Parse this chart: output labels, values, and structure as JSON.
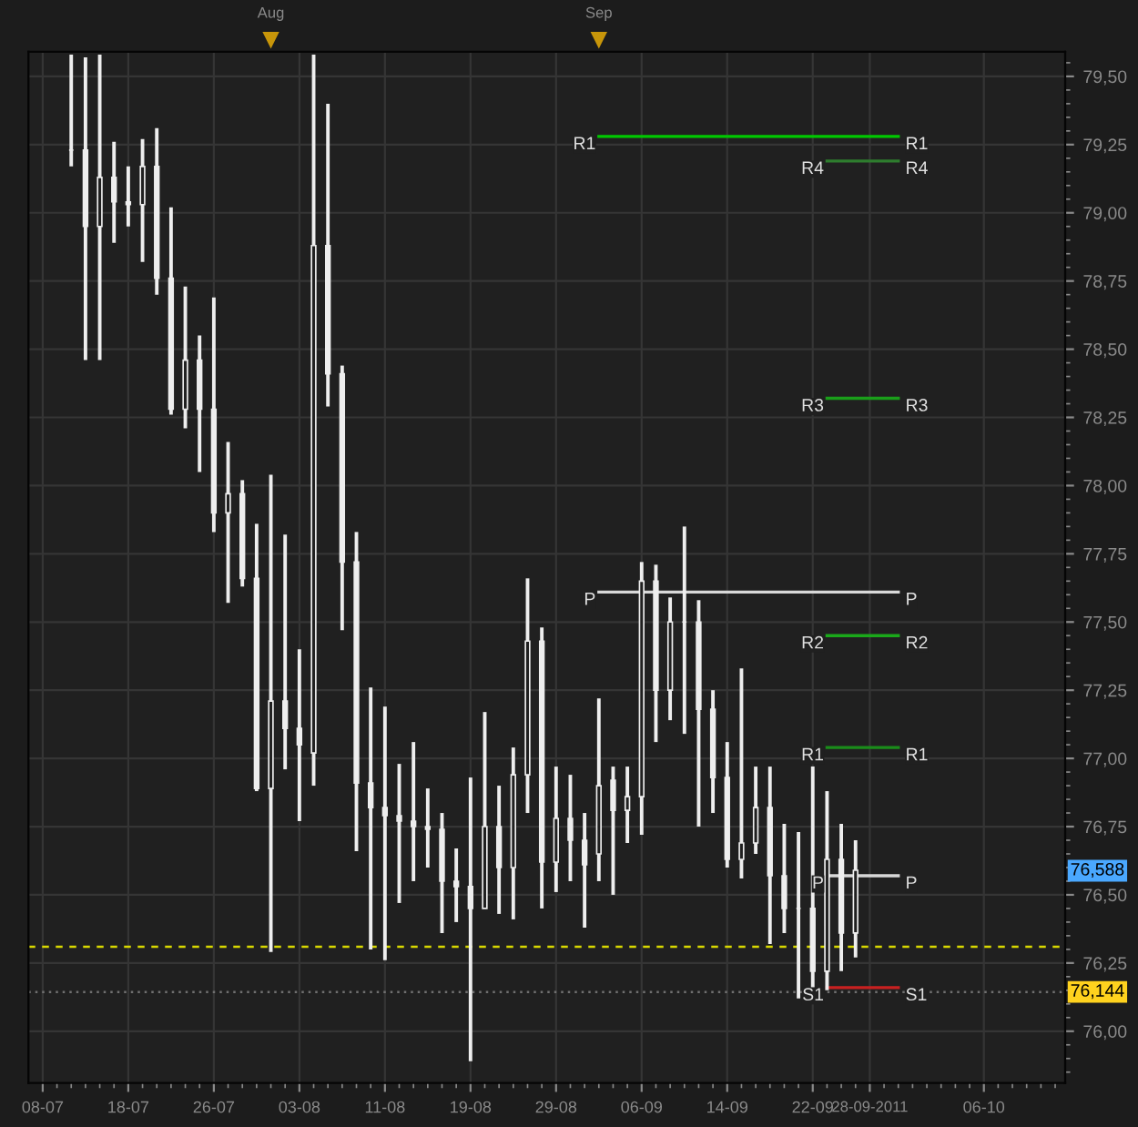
{
  "chart_data": {
    "type": "candlestick",
    "color": "#eeeeee",
    "categories": [
      "08-07",
      null,
      null,
      null,
      null,
      null,
      "18-07",
      null,
      null,
      null,
      null,
      null,
      "26-07",
      null,
      null,
      null,
      null,
      null,
      "03-08",
      null,
      null,
      null,
      null,
      null,
      "11-08",
      null,
      null,
      null,
      null,
      null,
      "19-08",
      null,
      null,
      null,
      null,
      null,
      "29-08",
      null,
      null,
      null,
      null,
      null,
      "06-09",
      null,
      null,
      null,
      null,
      null,
      "14-09",
      null,
      null,
      null,
      null,
      null,
      "22-09",
      null,
      null,
      null,
      "28-09-2011",
      null,
      null,
      null,
      null,
      null,
      null,
      null,
      "06-10",
      null,
      null,
      null,
      null,
      null
    ],
    "ohlc": [
      null,
      null,
      [
        79.23,
        79.58,
        79.17,
        79.23
      ],
      [
        79.23,
        79.57,
        78.46,
        78.95
      ],
      [
        78.95,
        79.58,
        78.46,
        79.13
      ],
      [
        79.13,
        79.26,
        78.89,
        79.04
      ],
      [
        79.04,
        79.17,
        78.95,
        79.03
      ],
      [
        79.03,
        79.27,
        78.82,
        79.17
      ],
      [
        79.17,
        79.31,
        78.7,
        78.76
      ],
      [
        78.76,
        79.02,
        78.26,
        78.28
      ],
      [
        78.28,
        78.73,
        78.21,
        78.46
      ],
      [
        78.46,
        78.55,
        78.05,
        78.28
      ],
      [
        78.28,
        78.69,
        77.83,
        77.9
      ],
      [
        77.9,
        78.16,
        77.57,
        77.97
      ],
      [
        77.97,
        78.02,
        77.63,
        77.66
      ],
      [
        77.66,
        77.86,
        76.88,
        76.89
      ],
      [
        76.89,
        78.04,
        76.29,
        77.21
      ],
      [
        77.21,
        77.82,
        76.96,
        77.11
      ],
      [
        77.11,
        77.4,
        76.77,
        77.05
      ],
      [
        77.02,
        79.58,
        76.9,
        78.88
      ],
      [
        78.88,
        79.4,
        78.29,
        78.41
      ],
      [
        78.41,
        78.44,
        77.47,
        77.72
      ],
      [
        77.72,
        77.83,
        76.66,
        76.91
      ],
      [
        76.91,
        77.26,
        76.3,
        76.82
      ],
      [
        76.82,
        77.19,
        76.26,
        76.79
      ],
      [
        76.79,
        76.98,
        76.47,
        76.77
      ],
      [
        76.77,
        77.06,
        76.55,
        76.75
      ],
      [
        76.75,
        76.89,
        76.6,
        76.74
      ],
      [
        76.74,
        76.8,
        76.36,
        76.55
      ],
      [
        76.55,
        76.67,
        76.4,
        76.53
      ],
      [
        76.53,
        76.93,
        75.89,
        76.45
      ],
      [
        76.45,
        77.17,
        76.45,
        76.75
      ],
      [
        76.75,
        76.9,
        76.43,
        76.6
      ],
      [
        76.6,
        77.04,
        76.41,
        76.94
      ],
      [
        76.94,
        77.66,
        76.8,
        77.43
      ],
      [
        77.43,
        77.48,
        76.45,
        76.62
      ],
      [
        76.62,
        76.97,
        76.51,
        76.78
      ],
      [
        76.78,
        76.94,
        76.55,
        76.7
      ],
      [
        76.7,
        76.8,
        76.38,
        76.61
      ],
      [
        76.65,
        77.22,
        76.55,
        76.9
      ],
      [
        76.92,
        76.97,
        76.5,
        76.81
      ],
      [
        76.81,
        76.97,
        76.69,
        76.86
      ],
      [
        76.86,
        77.72,
        76.72,
        77.65
      ],
      [
        77.65,
        77.71,
        77.06,
        77.25
      ],
      [
        77.25,
        77.59,
        77.14,
        77.5
      ],
      [
        77.5,
        77.85,
        77.09,
        77.5
      ],
      [
        77.5,
        77.58,
        76.75,
        77.18
      ],
      [
        77.18,
        77.25,
        76.8,
        76.93
      ],
      [
        76.93,
        77.06,
        76.6,
        76.63
      ],
      [
        76.63,
        77.33,
        76.56,
        76.69
      ],
      [
        76.69,
        76.97,
        76.65,
        76.82
      ],
      [
        76.82,
        76.97,
        76.32,
        76.57
      ],
      [
        76.57,
        76.76,
        76.36,
        76.45
      ],
      [
        76.45,
        76.73,
        76.12,
        76.45
      ],
      [
        76.45,
        76.97,
        76.1,
        76.22
      ],
      [
        76.22,
        76.88,
        76.15,
        76.63
      ],
      [
        76.63,
        76.76,
        76.22,
        76.36
      ],
      [
        76.36,
        76.7,
        76.27,
        76.59
      ],
      null,
      null,
      null,
      null,
      null,
      null,
      null,
      null,
      null,
      null,
      null,
      null,
      null,
      null
    ],
    "series": [
      {
        "type": "line",
        "name": "R1",
        "color": "#00c800",
        "values": [
          null,
          null,
          null,
          null,
          null,
          null,
          null,
          null,
          null,
          null,
          null,
          null,
          null,
          null,
          null,
          null,
          null,
          null,
          null,
          null,
          null,
          null,
          null,
          null,
          null,
          null,
          null,
          null,
          null,
          null,
          null,
          null,
          null,
          null,
          null,
          null,
          null,
          null,
          null,
          79.28,
          79.28,
          79.28,
          79.28,
          79.28,
          79.28,
          79.28,
          79.28,
          79.28,
          79.28,
          79.28,
          79.28,
          79.28,
          79.28,
          79.28,
          79.28,
          79.28,
          79.28,
          79.28,
          79.28,
          79.28,
          79.28,
          null,
          null,
          null,
          null,
          null,
          null,
          null,
          null,
          null,
          null,
          null
        ]
      },
      {
        "type": "line",
        "name": "R4",
        "color": "#2e7d2e",
        "values": [
          null,
          null,
          null,
          null,
          null,
          null,
          null,
          null,
          null,
          null,
          null,
          null,
          null,
          null,
          null,
          null,
          null,
          null,
          null,
          null,
          null,
          null,
          null,
          null,
          null,
          null,
          null,
          null,
          null,
          null,
          null,
          null,
          null,
          null,
          null,
          null,
          null,
          null,
          null,
          null,
          null,
          null,
          null,
          null,
          null,
          null,
          null,
          null,
          null,
          null,
          null,
          null,
          null,
          null,
          null,
          79.19,
          79.19,
          79.19,
          79.19,
          79.19,
          79.19,
          null,
          null,
          null,
          null,
          null,
          null,
          null,
          null,
          null,
          null,
          null
        ]
      },
      {
        "type": "line",
        "name": "R3",
        "color": "#1a9e1a",
        "values": [
          null,
          null,
          null,
          null,
          null,
          null,
          null,
          null,
          null,
          null,
          null,
          null,
          null,
          null,
          null,
          null,
          null,
          null,
          null,
          null,
          null,
          null,
          null,
          null,
          null,
          null,
          null,
          null,
          null,
          null,
          null,
          null,
          null,
          null,
          null,
          null,
          null,
          null,
          null,
          null,
          null,
          null,
          null,
          null,
          null,
          null,
          null,
          null,
          null,
          null,
          null,
          null,
          null,
          null,
          null,
          78.32,
          78.32,
          78.32,
          78.32,
          78.32,
          78.32,
          null,
          null,
          null,
          null,
          null,
          null,
          null,
          null,
          null,
          null,
          null
        ]
      },
      {
        "type": "line",
        "name": "P",
        "color": "#d8d8d8",
        "values": [
          null,
          null,
          null,
          null,
          null,
          null,
          null,
          null,
          null,
          null,
          null,
          null,
          null,
          null,
          null,
          null,
          null,
          null,
          null,
          null,
          null,
          null,
          null,
          null,
          null,
          null,
          null,
          null,
          null,
          null,
          null,
          null,
          null,
          null,
          null,
          null,
          null,
          null,
          null,
          77.61,
          77.61,
          77.61,
          77.61,
          77.61,
          77.61,
          77.61,
          77.61,
          77.61,
          77.61,
          77.61,
          77.61,
          77.61,
          77.61,
          77.61,
          77.61,
          77.61,
          77.61,
          77.61,
          77.61,
          77.61,
          77.61,
          null,
          null,
          null,
          null,
          null,
          null,
          null,
          null,
          null,
          null,
          null
        ]
      },
      {
        "type": "line",
        "name": "R2",
        "color": "#1aa81a",
        "values": [
          null,
          null,
          null,
          null,
          null,
          null,
          null,
          null,
          null,
          null,
          null,
          null,
          null,
          null,
          null,
          null,
          null,
          null,
          null,
          null,
          null,
          null,
          null,
          null,
          null,
          null,
          null,
          null,
          null,
          null,
          null,
          null,
          null,
          null,
          null,
          null,
          null,
          null,
          null,
          null,
          null,
          null,
          null,
          null,
          null,
          null,
          null,
          null,
          null,
          null,
          null,
          null,
          null,
          null,
          null,
          77.45,
          77.45,
          77.45,
          77.45,
          77.45,
          77.45,
          null,
          null,
          null,
          null,
          null,
          null,
          null,
          null,
          null,
          null,
          null
        ]
      },
      {
        "type": "line",
        "name": "R1",
        "color": "#1a8c1a",
        "values": [
          null,
          null,
          null,
          null,
          null,
          null,
          null,
          null,
          null,
          null,
          null,
          null,
          null,
          null,
          null,
          null,
          null,
          null,
          null,
          null,
          null,
          null,
          null,
          null,
          null,
          null,
          null,
          null,
          null,
          null,
          null,
          null,
          null,
          null,
          null,
          null,
          null,
          null,
          null,
          null,
          null,
          null,
          null,
          null,
          null,
          null,
          null,
          null,
          null,
          null,
          null,
          null,
          null,
          null,
          null,
          77.04,
          77.04,
          77.04,
          77.04,
          77.04,
          77.04,
          null,
          null,
          null,
          null,
          null,
          null,
          null,
          null,
          null,
          null,
          null
        ]
      },
      {
        "type": "line",
        "name": "P",
        "color": "#d8d8d8",
        "values": [
          null,
          null,
          null,
          null,
          null,
          null,
          null,
          null,
          null,
          null,
          null,
          null,
          null,
          null,
          null,
          null,
          null,
          null,
          null,
          null,
          null,
          null,
          null,
          null,
          null,
          null,
          null,
          null,
          null,
          null,
          null,
          null,
          null,
          null,
          null,
          null,
          null,
          null,
          null,
          null,
          null,
          null,
          null,
          null,
          null,
          null,
          null,
          null,
          null,
          null,
          null,
          null,
          null,
          null,
          null,
          76.57,
          76.57,
          76.57,
          76.57,
          76.57,
          76.57,
          null,
          null,
          null,
          null,
          null,
          null,
          null,
          null,
          null,
          null,
          null
        ]
      },
      {
        "type": "line",
        "name": "S1",
        "color": "#c82020",
        "values": [
          null,
          null,
          null,
          null,
          null,
          null,
          null,
          null,
          null,
          null,
          null,
          null,
          null,
          null,
          null,
          null,
          null,
          null,
          null,
          null,
          null,
          null,
          null,
          null,
          null,
          null,
          null,
          null,
          null,
          null,
          null,
          null,
          null,
          null,
          null,
          null,
          null,
          null,
          null,
          null,
          null,
          null,
          null,
          null,
          null,
          null,
          null,
          null,
          null,
          null,
          null,
          null,
          null,
          null,
          null,
          76.16,
          76.16,
          76.16,
          76.16,
          76.16,
          76.16,
          null,
          null,
          null,
          null,
          null,
          null,
          null,
          null,
          null,
          null,
          null
        ]
      }
    ],
    "ylim": [
      75.81,
      79.59
    ],
    "yticks": [
      {
        "value": 76.0,
        "label": "76,00"
      },
      {
        "value": 76.25,
        "label": "76,25"
      },
      {
        "value": 76.5,
        "label": "76,50"
      },
      {
        "value": 76.75,
        "label": "76,75"
      },
      {
        "value": 77.0,
        "label": "77,00"
      },
      {
        "value": 77.25,
        "label": "77,25"
      },
      {
        "value": 77.5,
        "label": "77,50"
      },
      {
        "value": 77.75,
        "label": "77,75"
      },
      {
        "value": 78.0,
        "label": "78,00"
      },
      {
        "value": 78.25,
        "label": "78,25"
      },
      {
        "value": 78.5,
        "label": "78,50"
      },
      {
        "value": 78.75,
        "label": "78,75"
      },
      {
        "value": 79.0,
        "label": "79,00"
      },
      {
        "value": 79.25,
        "label": "79,25"
      },
      {
        "value": 79.5,
        "label": "79,50"
      }
    ],
    "ref_lines": [
      {
        "axis": "y",
        "value": 76.31,
        "color": "#d8d800",
        "line_style": "dashed"
      },
      {
        "axis": "y",
        "value": 76.144,
        "label": "76,144",
        "color": "#707070",
        "line_style": "dotted"
      }
    ],
    "annotations": [
      {
        "text": "76,588",
        "y": 76.588
      },
      "Aug",
      "Sep"
    ],
    "grid": true,
    "legend": false
  }
}
